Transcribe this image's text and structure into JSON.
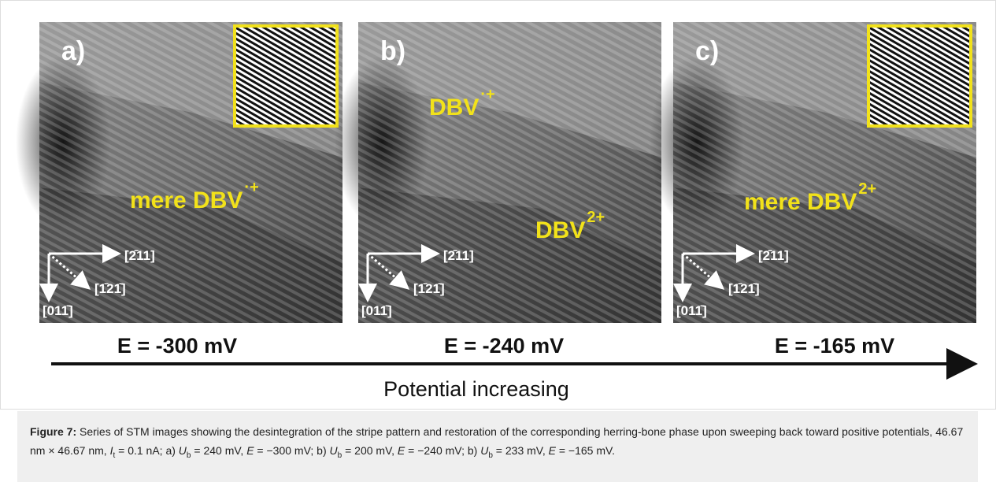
{
  "panels": [
    {
      "label": "a)",
      "annotations": [
        {
          "text": "mere DBV",
          "sup": "·+"
        }
      ],
      "directions": [
        "[2̄11]",
        "[1̄21̄]",
        "[011̄]"
      ],
      "energy": "E = -300 mV"
    },
    {
      "label": "b)",
      "annotations": [
        {
          "text": "DBV",
          "sup": "·+"
        },
        {
          "text": "DBV",
          "sup": "2+"
        }
      ],
      "directions": [
        "[2̄11]",
        "[1̄21̄]",
        "[011̄]"
      ],
      "energy": "E = -240 mV"
    },
    {
      "label": "c)",
      "annotations": [
        {
          "text": "mere DBV",
          "sup": "2+"
        }
      ],
      "directions": [
        "[2̄11]",
        "[1̄21̄]",
        "[011̄]"
      ],
      "energy": "E = -165 mV"
    }
  ],
  "axis_label": "Potential increasing",
  "caption": {
    "label": "Figure 7:",
    "parts": [
      {
        "text": " Series of STM images showing the desintegration of the stripe pattern and restoration of the corresponding herring-bone phase upon sweeping back toward positive potentials, 46.67 nm × 46.67 nm, ",
        "style": "plain"
      },
      {
        "text": "I",
        "style": "italic"
      },
      {
        "text": "t",
        "style": "sub"
      },
      {
        "text": " = 0.1 nA; a) ",
        "style": "plain"
      },
      {
        "text": "U",
        "style": "italic"
      },
      {
        "text": "b",
        "style": "sub"
      },
      {
        "text": " = 240 mV, ",
        "style": "plain"
      },
      {
        "text": "E",
        "style": "italic"
      },
      {
        "text": " = −300 mV; b) ",
        "style": "plain"
      },
      {
        "text": "U",
        "style": "italic"
      },
      {
        "text": "b",
        "style": "sub"
      },
      {
        "text": " = 200 mV, ",
        "style": "plain"
      },
      {
        "text": "E",
        "style": "italic"
      },
      {
        "text": " = −240 mV; b) ",
        "style": "plain"
      },
      {
        "text": "U",
        "style": "italic"
      },
      {
        "text": "b",
        "style": "sub"
      },
      {
        "text": " = 233 mV, ",
        "style": "plain"
      },
      {
        "text": "E",
        "style": "italic"
      },
      {
        "text": " = −165 mV.",
        "style": "plain"
      }
    ]
  }
}
